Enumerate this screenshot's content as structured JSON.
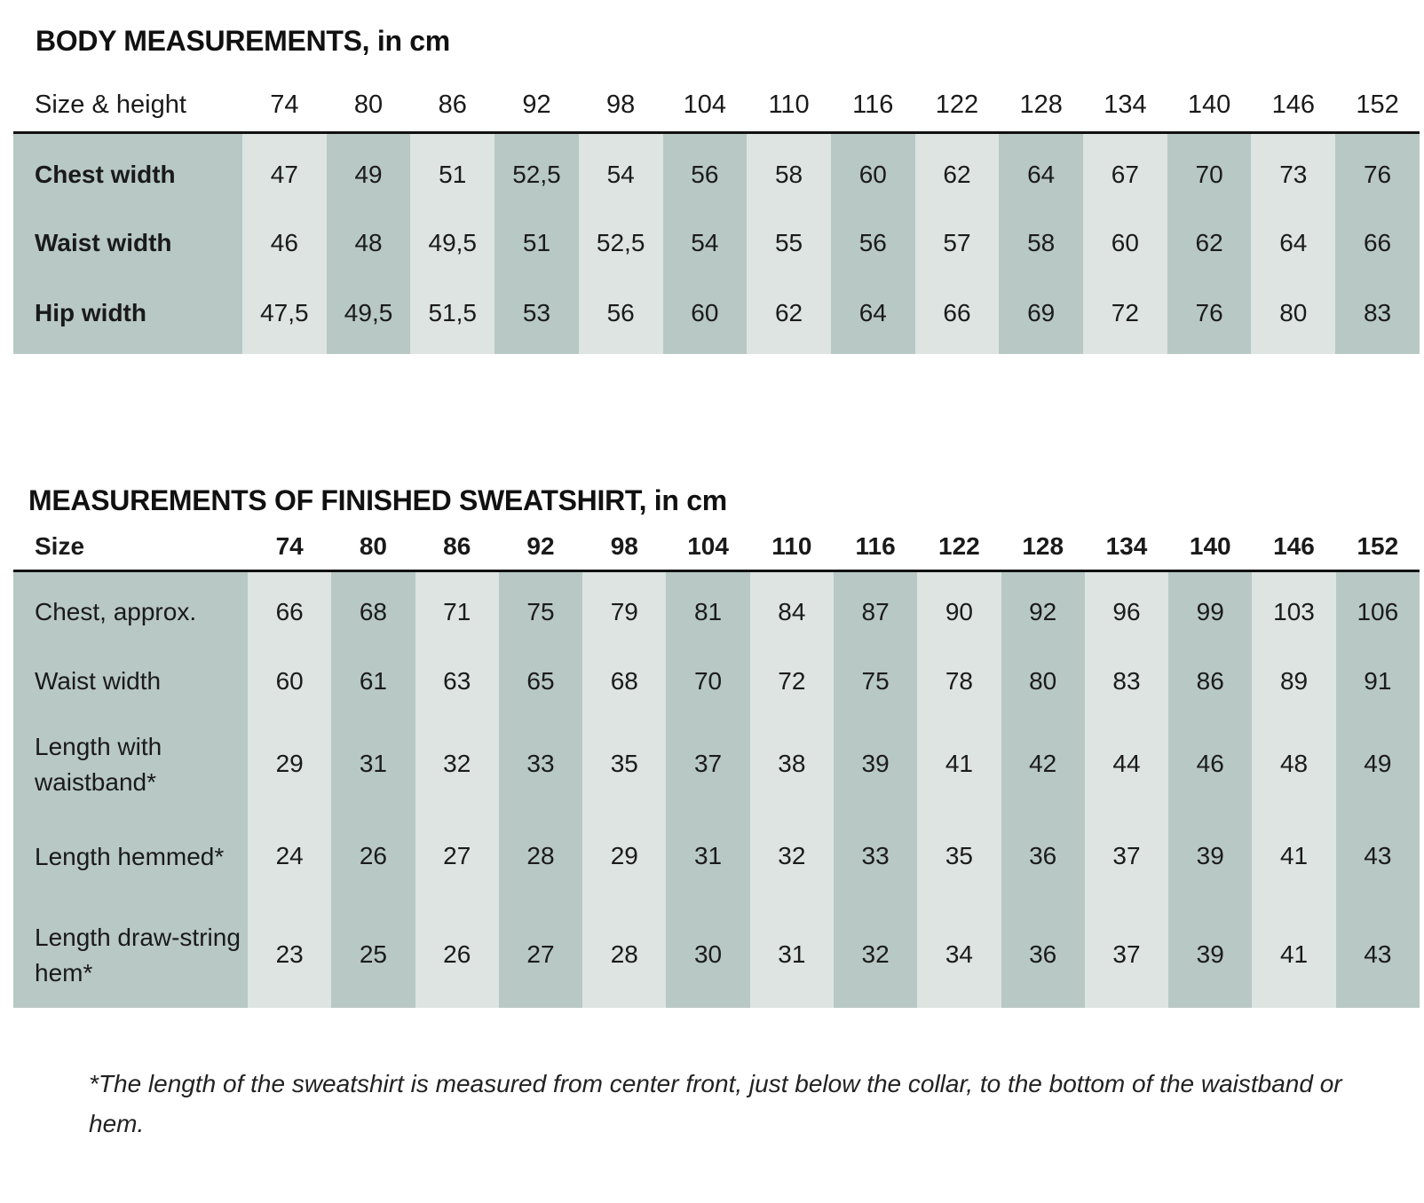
{
  "body_measurements": {
    "title": "BODY MEASUREMENTS, in cm",
    "header_label": "Size & height",
    "sizes": [
      "74",
      "80",
      "86",
      "92",
      "98",
      "104",
      "110",
      "116",
      "122",
      "128",
      "134",
      "140",
      "146",
      "152"
    ],
    "rows": [
      {
        "label": "Chest width",
        "values": [
          "47",
          "49",
          "51",
          "52,5",
          "54",
          "56",
          "58",
          "60",
          "62",
          "64",
          "67",
          "70",
          "73",
          "76"
        ]
      },
      {
        "label": "Waist width",
        "values": [
          "46",
          "48",
          "49,5",
          "51",
          "52,5",
          "54",
          "55",
          "56",
          "57",
          "58",
          "60",
          "62",
          "64",
          "66"
        ]
      },
      {
        "label": "Hip width",
        "values": [
          "47,5",
          "49,5",
          "51,5",
          "53",
          "56",
          "60",
          "62",
          "64",
          "66",
          "69",
          "72",
          "76",
          "80",
          "83"
        ]
      }
    ]
  },
  "finished_measurements": {
    "title": "MEASUREMENTS OF FINISHED SWEATSHIRT, in cm",
    "header_label": "Size",
    "sizes": [
      "74",
      "80",
      "86",
      "92",
      "98",
      "104",
      "110",
      "116",
      "122",
      "128",
      "134",
      "140",
      "146",
      "152"
    ],
    "rows": [
      {
        "label": "Chest, approx.",
        "values": [
          "66",
          "68",
          "71",
          "75",
          "79",
          "81",
          "84",
          "87",
          "90",
          "92",
          "96",
          "99",
          "103",
          "106"
        ]
      },
      {
        "label": "Waist width",
        "values": [
          "60",
          "61",
          "63",
          "65",
          "68",
          "70",
          "72",
          "75",
          "78",
          "80",
          "83",
          "86",
          "89",
          "91"
        ]
      },
      {
        "label": "Length with waistband*",
        "values": [
          "29",
          "31",
          "32",
          "33",
          "35",
          "37",
          "38",
          "39",
          "41",
          "42",
          "44",
          "46",
          "48",
          "49"
        ]
      },
      {
        "label": "Length hemmed*",
        "values": [
          "24",
          "26",
          "27",
          "28",
          "29",
          "31",
          "32",
          "33",
          "35",
          "36",
          "37",
          "39",
          "41",
          "43"
        ]
      },
      {
        "label": "Length draw-string hem*",
        "values": [
          "23",
          "25",
          "26",
          "27",
          "28",
          "30",
          "31",
          "32",
          "34",
          "36",
          "37",
          "39",
          "41",
          "43"
        ]
      }
    ]
  },
  "footnote": "*The length of the sweatshirt is measured from center front, just below the collar, to the bottom of the waistband or hem.",
  "colors": {
    "dark_column": "#b8c8c4",
    "light_column": "#dde4e2",
    "rule": "#111111"
  }
}
